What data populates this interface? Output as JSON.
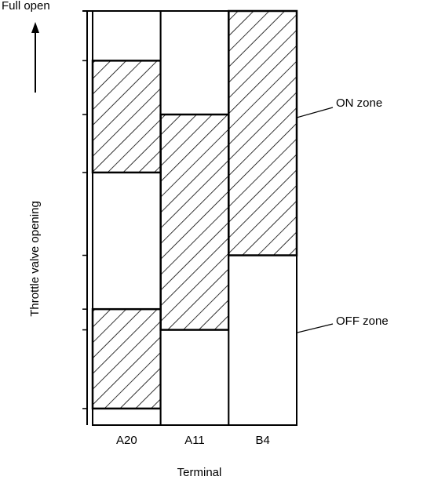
{
  "chart_data": {
    "type": "range-bar",
    "categories": [
      "A20",
      "A11",
      "B4"
    ],
    "on_zones": [
      [
        [
          4,
          28
        ],
        [
          61,
          88
        ]
      ],
      [
        [
          23,
          75
        ]
      ],
      [
        [
          41,
          100
        ]
      ]
    ],
    "ylim": [
      0,
      100
    ],
    "yticks": [
      {
        "value": 100,
        "label": "Full open"
      }
    ],
    "x_label": "Terminal",
    "y_label": "Throttle valve opening",
    "annotations": [
      "ON zone",
      "OFF zone"
    ],
    "hatch": true
  }
}
